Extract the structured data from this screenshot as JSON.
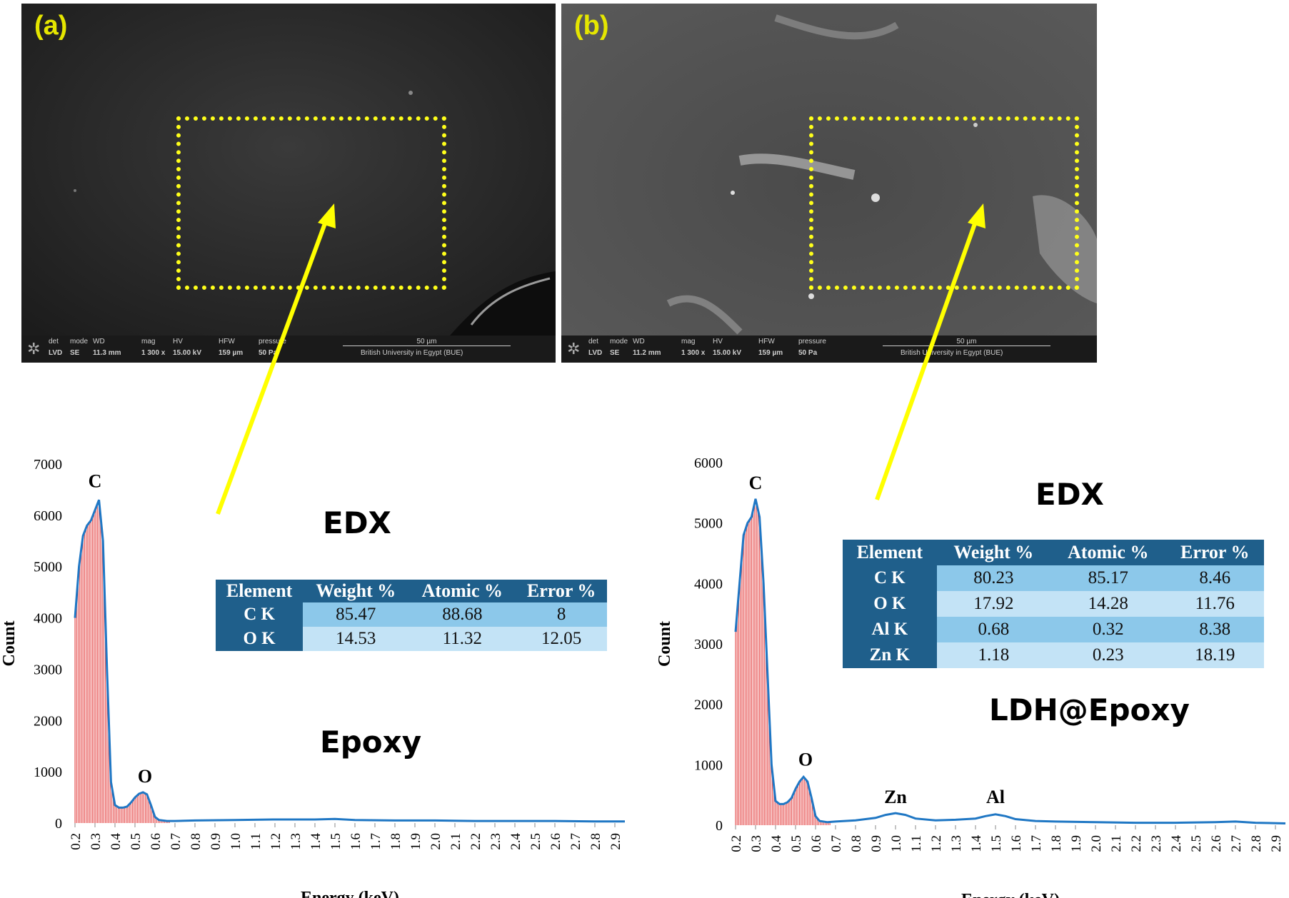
{
  "panels": [
    {
      "label": "(a)",
      "bar": {
        "det": "det",
        "mode": "mode",
        "wd": "WD",
        "mag": "mag",
        "hv": "HV",
        "hfw": "HFW",
        "pressure": "pressure",
        "det_v": "LVD",
        "mode_v": "SE",
        "wd_v": "11.3 mm",
        "mag_v": "1 300 x",
        "hv_v": "15.00 kV",
        "hfw_v": "159 µm",
        "pressure_v": "50 Pa",
        "scale": "50 µm",
        "institution": "British University in Egypt (BUE)"
      }
    },
    {
      "label": "(b)",
      "bar": {
        "det": "det",
        "mode": "mode",
        "wd": "WD",
        "mag": "mag",
        "hv": "HV",
        "hfw": "HFW",
        "pressure": "pressure",
        "det_v": "LVD",
        "mode_v": "SE",
        "wd_v": "11.2 mm",
        "mag_v": "1 300 x",
        "hv_v": "15.00 kV",
        "hfw_v": "159 µm",
        "pressure_v": "50 Pa",
        "scale": "50 µm",
        "institution": "British University in Egypt (BUE)"
      }
    }
  ],
  "left": {
    "heading": "EDX",
    "sample": "Epoxy",
    "table": {
      "headers": [
        "Element",
        "Weight %",
        "Atomic %",
        "Error %"
      ],
      "rows": [
        [
          "C K",
          "85.47",
          "88.68",
          "8"
        ],
        [
          "O K",
          "14.53",
          "11.32",
          "12.05"
        ]
      ]
    }
  },
  "right": {
    "heading": "EDX",
    "sample": "LDH@Epoxy",
    "table": {
      "headers": [
        "Element",
        "Weight %",
        "Atomic %",
        "Error %"
      ],
      "rows": [
        [
          "C K",
          "80.23",
          "85.17",
          "8.46"
        ],
        [
          "O K",
          "17.92",
          "14.28",
          "11.76"
        ],
        [
          "Al K",
          "0.68",
          "0.32",
          "8.38"
        ],
        [
          "Zn K",
          "1.18",
          "0.23",
          "18.19"
        ]
      ]
    }
  },
  "colors": {
    "arrow": "#ffff00",
    "roi": "#ffff1a",
    "spectrum_line": "#1f77c4",
    "spectrum_bars": "#e02020",
    "table_header": "#1f5f8b"
  },
  "chart_data": [
    {
      "type": "line",
      "xlabel": "Energy (keV)",
      "ylabel": "Count",
      "xlim": [
        0.2,
        2.95
      ],
      "ylim": [
        0,
        7000
      ],
      "yticks": [
        0,
        1000,
        2000,
        3000,
        4000,
        5000,
        6000,
        7000
      ],
      "xticks": [
        "0.2",
        "0.3",
        "0.4",
        "0.5",
        "0.6",
        "0.7",
        "0.8",
        "0.9",
        "1.0",
        "1.1",
        "1.2",
        "1.3",
        "1.4",
        "1.5",
        "1.6",
        "1.7",
        "1.8",
        "1.9",
        "2.0",
        "2.1",
        "2.2",
        "2.3",
        "2.4",
        "2.5",
        "2.6",
        "2.7",
        "2.8",
        "2.9"
      ],
      "peak_labels": [
        {
          "text": "C",
          "x": 0.3,
          "y": 6350
        },
        {
          "text": "O",
          "x": 0.55,
          "y": 600
        }
      ],
      "series": [
        {
          "x": [
            0.2,
            0.22,
            0.24,
            0.26,
            0.28,
            0.3,
            0.32,
            0.34,
            0.36,
            0.38,
            0.4,
            0.42,
            0.44,
            0.46,
            0.48,
            0.5,
            0.52,
            0.54,
            0.56,
            0.58,
            0.6,
            0.62,
            0.66,
            0.7,
            0.8,
            1.0,
            1.2,
            1.4,
            1.5,
            1.6,
            1.8,
            2.0,
            2.2,
            2.4,
            2.6,
            2.8,
            2.95
          ],
          "y": [
            4000,
            5000,
            5600,
            5800,
            5900,
            6100,
            6300,
            5500,
            3000,
            800,
            350,
            300,
            300,
            320,
            400,
            500,
            570,
            600,
            560,
            350,
            120,
            60,
            40,
            40,
            50,
            60,
            70,
            70,
            80,
            60,
            50,
            50,
            40,
            40,
            40,
            30,
            30
          ]
        }
      ]
    },
    {
      "type": "line",
      "xlabel": "Energy (keV)",
      "ylabel": "Count",
      "xlim": [
        0.2,
        2.95
      ],
      "ylim": [
        0,
        6000
      ],
      "yticks": [
        0,
        1000,
        2000,
        3000,
        4000,
        5000,
        6000
      ],
      "xticks": [
        "0.2",
        "0.3",
        "0.4",
        "0.5",
        "0.6",
        "0.7",
        "0.8",
        "0.9",
        "1.0",
        "1.1",
        "1.2",
        "1.3",
        "1.4",
        "1.5",
        "1.6",
        "1.7",
        "1.8",
        "1.9",
        "2.0",
        "2.1",
        "2.2",
        "2.3",
        "2.4",
        "2.5",
        "2.6",
        "2.7",
        "2.8",
        "2.9"
      ],
      "peak_labels": [
        {
          "text": "C",
          "x": 0.3,
          "y": 5400
        },
        {
          "text": "O",
          "x": 0.55,
          "y": 820
        },
        {
          "text": "Zn",
          "x": 1.0,
          "y": 200
        },
        {
          "text": "Al",
          "x": 1.5,
          "y": 200
        }
      ],
      "series": [
        {
          "x": [
            0.2,
            0.22,
            0.24,
            0.26,
            0.28,
            0.3,
            0.32,
            0.34,
            0.36,
            0.38,
            0.4,
            0.42,
            0.44,
            0.46,
            0.48,
            0.5,
            0.52,
            0.54,
            0.56,
            0.58,
            0.6,
            0.62,
            0.66,
            0.7,
            0.8,
            0.9,
            0.95,
            1.0,
            1.05,
            1.1,
            1.2,
            1.3,
            1.4,
            1.45,
            1.5,
            1.55,
            1.6,
            1.7,
            1.8,
            2.0,
            2.2,
            2.4,
            2.6,
            2.7,
            2.8,
            2.95
          ],
          "y": [
            3200,
            4000,
            4800,
            5000,
            5100,
            5400,
            5100,
            4000,
            2500,
            1000,
            400,
            350,
            350,
            380,
            450,
            600,
            720,
            800,
            720,
            450,
            150,
            70,
            50,
            60,
            80,
            120,
            170,
            200,
            170,
            110,
            80,
            90,
            110,
            150,
            180,
            150,
            100,
            70,
            60,
            50,
            40,
            40,
            50,
            60,
            40,
            30
          ]
        }
      ]
    }
  ]
}
